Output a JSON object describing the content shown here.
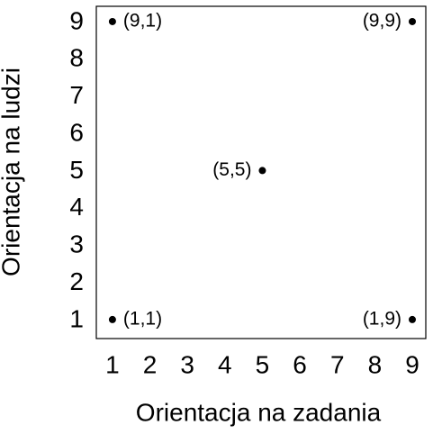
{
  "chart_data": {
    "type": "scatter",
    "x_label": "Orientacja na zadania",
    "y_label": "Orientacja na ludzi",
    "x": [
      1,
      9,
      5,
      1,
      9
    ],
    "values": [
      9,
      9,
      5,
      1,
      1
    ],
    "point_labels": [
      "(9,1)",
      "(9,9)",
      "(5,5)",
      "(1,1)",
      "(1,9)"
    ],
    "color": "#000000",
    "xlim": [
      0.57,
      9.36
    ],
    "ylim": [
      0.49,
      9.41
    ],
    "xticks": [
      1,
      2,
      3,
      4,
      5,
      6,
      7,
      8,
      9
    ],
    "yticks": [
      1,
      2,
      3,
      4,
      5,
      6,
      7,
      8,
      9
    ],
    "grid": false
  }
}
